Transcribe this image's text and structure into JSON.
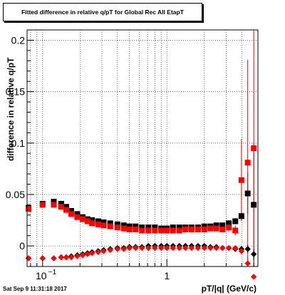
{
  "title": "Fitted difference in relative q/pT for Global Rec All EtapT",
  "footer": "Sat Sep  9 11:31:18 2017",
  "colors": {
    "series_black": "#000000",
    "series_red": "#ff0000",
    "axis": "#000000"
  },
  "chart_data": {
    "type": "scatter",
    "title": "Fitted difference in relative q/pT for Global Rec All EtapT",
    "xlabel": "pT/|q| (GeV/c)",
    "ylabel": "difference in relative q/pT",
    "xscale": "log",
    "xlim": [
      0.075,
      5.4
    ],
    "ylim": [
      -0.02,
      0.21
    ],
    "grid": true,
    "x_ticks": [
      {
        "v": 0.1,
        "base": "10",
        "exp": "−1"
      },
      {
        "v": 1,
        "label": "1"
      }
    ],
    "y_ticks": [
      {
        "v": 0,
        "label": "0"
      },
      {
        "v": 0.05,
        "label": "0.05"
      },
      {
        "v": 0.1,
        "label": "0.1"
      },
      {
        "v": 0.15,
        "label": "0.15"
      },
      {
        "v": 0.2,
        "label": "0.2"
      }
    ],
    "series": [
      {
        "color": "#000000",
        "marker": "square",
        "x": [
          0.077,
          0.1,
          0.123,
          0.141,
          0.155,
          0.17,
          0.19,
          0.21,
          0.23,
          0.25,
          0.28,
          0.31,
          0.35,
          0.4,
          0.45,
          0.5,
          0.56,
          0.63,
          0.71,
          0.8,
          0.9,
          1.0,
          1.12,
          1.26,
          1.41,
          1.58,
          1.78,
          2.0,
          2.24,
          2.5,
          2.8,
          3.15,
          3.55,
          3.98,
          4.47,
          5.0
        ],
        "y": [
          0.037,
          0.041,
          0.043,
          0.041,
          0.038,
          0.034,
          0.031,
          0.028,
          0.026,
          0.025,
          0.024,
          0.023,
          0.022,
          0.021,
          0.02,
          0.019,
          0.019,
          0.018,
          0.018,
          0.018,
          0.017,
          0.017,
          0.018,
          0.018,
          0.018,
          0.018,
          0.018,
          0.019,
          0.019,
          0.02,
          0.02,
          0.022,
          0.024,
          0.029,
          0.051,
          0.04
        ],
        "yerr": [
          0.001,
          0.001,
          0.001,
          0.001,
          0.001,
          0.001,
          0.001,
          0.001,
          0.001,
          0.001,
          0.001,
          0.001,
          0.001,
          0.001,
          0.001,
          0.001,
          0.001,
          0.001,
          0.001,
          0.001,
          0.001,
          0.001,
          0.001,
          0.001,
          0.001,
          0.001,
          0.001,
          0.001,
          0.002,
          0.002,
          0.002,
          0.003,
          0.003,
          0.004,
          0.02,
          0.06
        ]
      },
      {
        "color": "#ff0000",
        "marker": "square",
        "x": [
          0.077,
          0.1,
          0.123,
          0.141,
          0.155,
          0.17,
          0.19,
          0.21,
          0.23,
          0.25,
          0.28,
          0.31,
          0.35,
          0.4,
          0.45,
          0.5,
          0.56,
          0.63,
          0.71,
          0.8,
          0.9,
          1.0,
          1.12,
          1.26,
          1.41,
          1.58,
          1.78,
          2.0,
          2.24,
          2.5,
          2.8,
          3.15,
          3.55,
          3.98,
          4.47,
          5.0
        ],
        "y": [
          0.036,
          0.04,
          0.04,
          0.038,
          0.035,
          0.031,
          0.028,
          0.026,
          0.024,
          0.022,
          0.021,
          0.02,
          0.019,
          0.018,
          0.017,
          0.016,
          0.016,
          0.015,
          0.015,
          0.015,
          0.015,
          0.015,
          0.015,
          0.015,
          0.016,
          0.016,
          0.016,
          0.016,
          0.017,
          0.017,
          0.016,
          0.018,
          0.015,
          0.064,
          0.081,
          0.095
        ],
        "yerr": [
          0.001,
          0.001,
          0.001,
          0.001,
          0.001,
          0.001,
          0.001,
          0.001,
          0.001,
          0.001,
          0.001,
          0.001,
          0.001,
          0.001,
          0.001,
          0.001,
          0.001,
          0.001,
          0.001,
          0.001,
          0.001,
          0.001,
          0.001,
          0.001,
          0.001,
          0.001,
          0.001,
          0.001,
          0.002,
          0.002,
          0.003,
          0.004,
          0.005,
          0.04,
          0.1,
          0.2
        ]
      },
      {
        "color": "#000000",
        "marker": "diamond",
        "x": [
          0.077,
          0.1,
          0.123,
          0.141,
          0.155,
          0.17,
          0.19,
          0.21,
          0.23,
          0.25,
          0.28,
          0.31,
          0.35,
          0.4,
          0.45,
          0.5,
          0.56,
          0.63,
          0.71,
          0.8,
          0.9,
          1.0,
          1.12,
          1.26,
          1.41,
          1.58,
          1.78,
          2.0,
          2.24,
          2.5,
          2.8,
          3.15,
          3.55,
          3.98,
          4.47,
          5.0
        ],
        "y": [
          -0.012,
          -0.012,
          -0.012,
          -0.011,
          -0.011,
          -0.01,
          -0.009,
          -0.008,
          -0.007,
          -0.006,
          -0.005,
          -0.004,
          -0.003,
          -0.002,
          -0.002,
          -0.001,
          -0.001,
          -0.001,
          0.0,
          0.0,
          0.0,
          0.0,
          0.0,
          0.0,
          0.0,
          0.0,
          0.0,
          0.0,
          -0.001,
          -0.001,
          -0.002,
          -0.002,
          -0.003,
          -0.003,
          -0.003,
          -0.008
        ],
        "yerr": [
          0.001,
          0.001,
          0.001,
          0.001,
          0.001,
          0.001,
          0.001,
          0.001,
          0.001,
          0.001,
          0.001,
          0.001,
          0.001,
          0.001,
          0.001,
          0.001,
          0.001,
          0.001,
          0.001,
          0.001,
          0.001,
          0.001,
          0.001,
          0.001,
          0.001,
          0.001,
          0.001,
          0.001,
          0.001,
          0.001,
          0.001,
          0.001,
          0.002,
          0.002,
          0.004,
          0.005
        ]
      },
      {
        "color": "#ff0000",
        "marker": "diamond",
        "x": [
          0.077,
          0.1,
          0.123,
          0.141,
          0.155,
          0.17,
          0.19,
          0.21,
          0.23,
          0.25,
          0.28,
          0.31,
          0.35,
          0.4,
          0.45,
          0.5,
          0.56,
          0.63,
          0.71,
          0.8,
          0.9,
          1.0,
          1.12,
          1.26,
          1.41,
          1.58,
          1.78,
          2.0,
          2.24,
          2.5,
          2.8,
          3.15,
          3.55,
          3.98,
          4.47,
          5.0
        ],
        "y": [
          -0.012,
          -0.012,
          -0.012,
          -0.011,
          -0.011,
          -0.011,
          -0.01,
          -0.009,
          -0.008,
          -0.007,
          -0.006,
          -0.005,
          -0.004,
          -0.003,
          -0.003,
          -0.002,
          -0.002,
          -0.002,
          -0.002,
          -0.002,
          -0.002,
          -0.002,
          -0.002,
          -0.002,
          -0.002,
          -0.002,
          -0.002,
          -0.002,
          -0.002,
          -0.002,
          -0.002,
          -0.002,
          -0.002,
          -0.005,
          -0.017,
          -0.03
        ],
        "yerr": [
          0.001,
          0.001,
          0.001,
          0.001,
          0.001,
          0.001,
          0.001,
          0.001,
          0.001,
          0.001,
          0.001,
          0.001,
          0.001,
          0.001,
          0.001,
          0.001,
          0.001,
          0.001,
          0.001,
          0.001,
          0.001,
          0.001,
          0.001,
          0.001,
          0.001,
          0.001,
          0.001,
          0.001,
          0.001,
          0.001,
          0.001,
          0.002,
          0.002,
          0.003,
          0.006,
          0.01
        ]
      }
    ]
  }
}
